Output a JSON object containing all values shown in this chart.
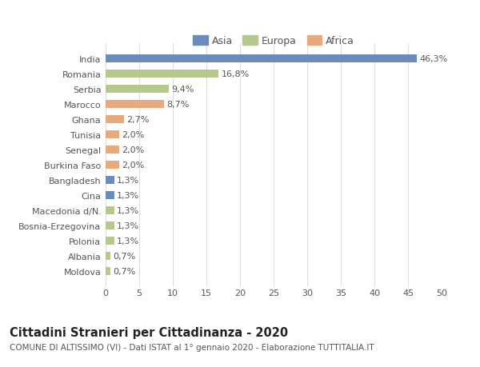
{
  "categories": [
    "India",
    "Romania",
    "Serbia",
    "Marocco",
    "Ghana",
    "Tunisia",
    "Senegal",
    "Burkina Faso",
    "Bangladesh",
    "Cina",
    "Macedonia d/N.",
    "Bosnia-Erzegovina",
    "Polonia",
    "Albania",
    "Moldova"
  ],
  "values": [
    46.3,
    16.8,
    9.4,
    8.7,
    2.7,
    2.0,
    2.0,
    2.0,
    1.3,
    1.3,
    1.3,
    1.3,
    1.3,
    0.7,
    0.7
  ],
  "labels": [
    "46,3%",
    "16,8%",
    "9,4%",
    "8,7%",
    "2,7%",
    "2,0%",
    "2,0%",
    "2,0%",
    "1,3%",
    "1,3%",
    "1,3%",
    "1,3%",
    "1,3%",
    "0,7%",
    "0,7%"
  ],
  "colors": [
    "#6b8cba",
    "#b5c98e",
    "#b5c98e",
    "#e8a97e",
    "#e8a97e",
    "#e8a97e",
    "#e8a97e",
    "#e8a97e",
    "#6b8cba",
    "#6b8cba",
    "#b5c98e",
    "#b5c98e",
    "#b5c98e",
    "#b5c98e",
    "#b5c98e"
  ],
  "legend_labels": [
    "Asia",
    "Europa",
    "Africa"
  ],
  "legend_colors": [
    "#6b8cba",
    "#b5c98e",
    "#e8a97e"
  ],
  "title": "Cittadini Stranieri per Cittadinanza - 2020",
  "subtitle": "COMUNE DI ALTISSIMO (VI) - Dati ISTAT al 1° gennaio 2020 - Elaborazione TUTTITALIA.IT",
  "xlim": [
    0,
    50
  ],
  "xticks": [
    0,
    5,
    10,
    15,
    20,
    25,
    30,
    35,
    40,
    45,
    50
  ],
  "background_color": "#ffffff",
  "grid_color": "#dddddd",
  "bar_height": 0.55,
  "label_fontsize": 8,
  "tick_fontsize": 8,
  "title_fontsize": 10.5,
  "subtitle_fontsize": 7.5,
  "legend_fontsize": 9
}
